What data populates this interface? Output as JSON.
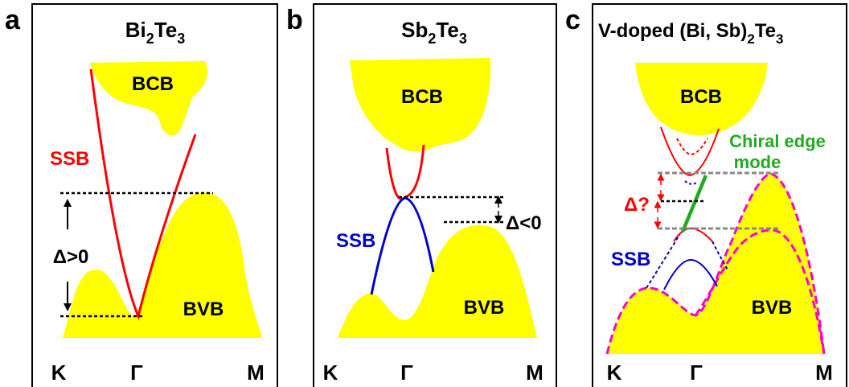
{
  "colors": {
    "band_fill": "#ffff00",
    "ssb_red": "#ff0000",
    "ssb_blue": "#0000cc",
    "chiral_green": "#22aa22",
    "magenta": "#ff00cc",
    "dash_black": "#000000",
    "dash_grey": "#888888"
  },
  "panels": [
    {
      "letter": "a",
      "title_parts": [
        "Bi",
        "2",
        "Te",
        "3"
      ],
      "bcb": "BCB",
      "bvb": "BVB",
      "ssb": "SSB",
      "delta": "Δ>0",
      "k_axis": [
        "K",
        "Γ",
        "M"
      ]
    },
    {
      "letter": "b",
      "title_parts": [
        "Sb",
        "2",
        "Te",
        "3"
      ],
      "bcb": "BCB",
      "bvb": "BVB",
      "ssb": "SSB",
      "delta": "Δ<0",
      "k_axis": [
        "K",
        "Γ",
        "M"
      ]
    },
    {
      "letter": "c",
      "title_parts": [
        "V-doped  (Bi, Sb)",
        "2",
        "Te",
        "3"
      ],
      "bcb": "BCB",
      "bvb": "BVB",
      "ssb": "SSB",
      "delta": "Δ?",
      "chiral_line1": "Chiral edge",
      "chiral_line2": "mode",
      "k_axis": [
        "K",
        "Γ",
        "M"
      ]
    }
  ]
}
